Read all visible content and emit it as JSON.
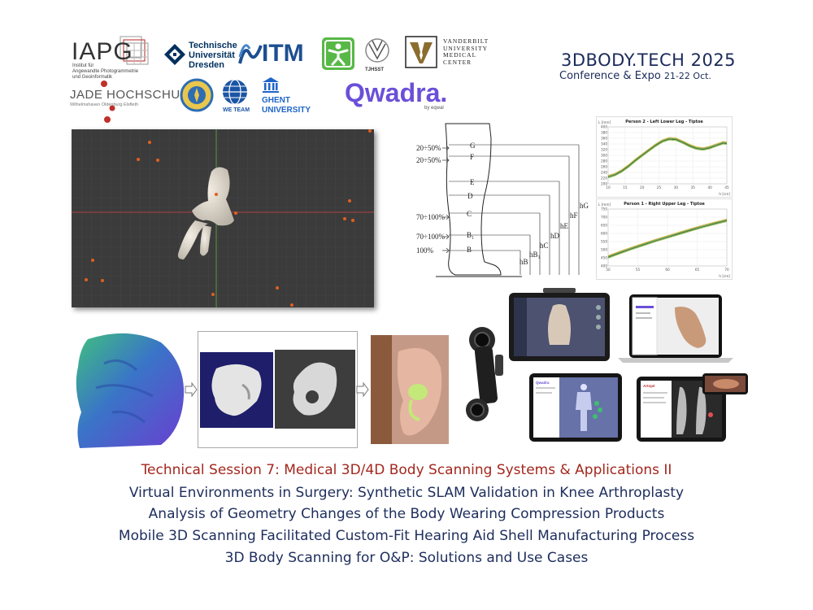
{
  "logos": {
    "iapg": {
      "name": "IAPG",
      "subtitle": [
        "Institut für",
        "Angewandte Photogrammetrie",
        "und Geoinformatik"
      ]
    },
    "tud": {
      "lines": [
        "Technische",
        "Universität",
        "Dresden"
      ]
    },
    "itm": "ITM",
    "tjhsst": "TJHSST",
    "vanderbilt": [
      "VANDERBILT",
      "UNIVERSITY",
      "MEDICAL",
      "CENTER"
    ],
    "jade": {
      "name": "JADE HOCHSCHULE",
      "subtitle": "Wilhelmshaven Oldenburg Elsfleth"
    },
    "weteam": "WE TEAM",
    "ghent": [
      "GHENT",
      "UNIVERSITY"
    ],
    "qwadra": {
      "name": "Qwadra.",
      "subtitle": "by eqwal"
    }
  },
  "conference": {
    "title": "3DBODY.TECH 2025",
    "subtitle": "Conference & Expo",
    "dates": "21-22 Oct."
  },
  "leg_diagram": {
    "left_labels": [
      "20÷50%",
      "20÷50%",
      "70÷100%",
      "70÷100%",
      "100%"
    ],
    "segments": [
      "G",
      "F",
      "E",
      "D",
      "C",
      "B₁",
      "B"
    ],
    "heights": [
      "hG",
      "hF",
      "hE",
      "hD",
      "hC",
      "hB₁",
      "hB"
    ]
  },
  "chart_data": [
    {
      "type": "line",
      "title": "Person 2 - Left Lower Leg - Tiptoe",
      "ylabel": "L [mm]",
      "xlabel": "h [cm]",
      "x_ticks": [
        "10",
        "15",
        "20",
        "25",
        "30",
        "35",
        "40",
        "45"
      ],
      "y_ticks": [
        "400",
        "380",
        "360",
        "340",
        "320",
        "300",
        "280",
        "260",
        "240",
        "220",
        "200"
      ],
      "xlim": [
        10,
        45
      ],
      "ylim": [
        200,
        400
      ],
      "x": [
        10,
        12,
        14,
        16,
        18,
        20,
        22,
        24,
        26,
        28,
        30,
        32,
        34,
        36,
        38,
        40,
        42,
        44,
        45
      ],
      "series": [
        {
          "values": [
            225,
            232,
            245,
            262,
            282,
            300,
            318,
            335,
            350,
            358,
            356,
            346,
            334,
            325,
            322,
            327,
            336,
            344,
            342
          ]
        }
      ],
      "grid": true
    },
    {
      "type": "line",
      "title": "Person 1 - Right Upper Leg - Tiptoe",
      "ylabel": "L [mm]",
      "xlabel": "h [cm]",
      "x_ticks": [
        "50",
        "55",
        "60",
        "65",
        "70"
      ],
      "y_ticks": [
        "750",
        "700",
        "650",
        "600",
        "550",
        "500",
        "450",
        "400"
      ],
      "xlim": [
        50,
        70
      ],
      "ylim": [
        400,
        750
      ],
      "x": [
        50,
        52,
        54,
        56,
        58,
        60,
        62,
        64,
        66,
        68,
        70
      ],
      "series": [
        {
          "values": [
            455,
            482,
            508,
            532,
            556,
            578,
            600,
            622,
            643,
            662,
            680
          ]
        }
      ],
      "grid": true
    }
  ],
  "tablet_apps": {
    "scanner_app": "Qwadra",
    "bodyscan_app": "Qwadra",
    "foot_app": "Artopé"
  },
  "captions": [
    "Technical Session 7: Medical 3D/4D Body Scanning Systems & Applications II",
    "Virtual Environments in Surgery: Synthetic SLAM Validation in Knee Arthroplasty",
    "Analysis of Geometry Changes of the Body Wearing Compression Products",
    "Mobile 3D Scanning Facilitated Custom-Fit Hearing Aid Shell Manufacturing Process",
    "3D Body Scanning for O&P: Solutions and Use Cases"
  ],
  "colors": {
    "session_title": "#a3271e",
    "caption_text": "#1d2d5c",
    "qwadra_purple": "#6b4fd8",
    "itm_blue": "#1d4f91"
  }
}
